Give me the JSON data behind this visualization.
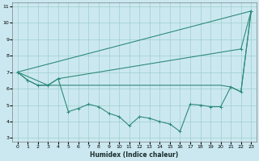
{
  "xlabel": "Humidex (Indice chaleur)",
  "background_color": "#cbe8f0",
  "grid_color": "#9ecfcc",
  "line_color": "#2e8b7a",
  "xlim": [
    -0.5,
    23.5
  ],
  "ylim": [
    2.8,
    11.2
  ],
  "yticks": [
    3,
    4,
    5,
    6,
    7,
    8,
    9,
    10,
    11
  ],
  "xticks": [
    0,
    1,
    2,
    3,
    4,
    5,
    6,
    7,
    8,
    9,
    10,
    11,
    12,
    13,
    14,
    15,
    16,
    17,
    18,
    19,
    20,
    21,
    22,
    23
  ],
  "line1_x": [
    0,
    23
  ],
  "line1_y": [
    7.0,
    10.7
  ],
  "line2_x": [
    0,
    3,
    4,
    5,
    6,
    7,
    8,
    9,
    10,
    11,
    12,
    13,
    14,
    15,
    16,
    17,
    18,
    19,
    20,
    21,
    22,
    23
  ],
  "line2_y": [
    7.0,
    6.2,
    6.2,
    6.2,
    6.2,
    6.2,
    6.2,
    6.2,
    6.2,
    6.2,
    6.2,
    6.2,
    6.2,
    6.2,
    6.2,
    6.2,
    6.2,
    6.2,
    6.2,
    6.1,
    5.8,
    10.7
  ],
  "line3_x": [
    0,
    1,
    2,
    3,
    4,
    22,
    23
  ],
  "line3_y": [
    7.0,
    6.5,
    6.2,
    6.2,
    6.6,
    8.4,
    10.7
  ],
  "line4_x": [
    0,
    1,
    2,
    3,
    4,
    5,
    6,
    7,
    8,
    9,
    10,
    11,
    12,
    13,
    14,
    15,
    16,
    17,
    18,
    19,
    20,
    21,
    22,
    23
  ],
  "line4_y": [
    7.0,
    6.5,
    6.2,
    6.2,
    6.6,
    4.6,
    4.8,
    5.05,
    4.9,
    4.5,
    4.3,
    3.75,
    4.3,
    4.2,
    4.0,
    3.85,
    3.4,
    5.05,
    5.0,
    4.9,
    4.9,
    6.1,
    5.8,
    10.7
  ]
}
